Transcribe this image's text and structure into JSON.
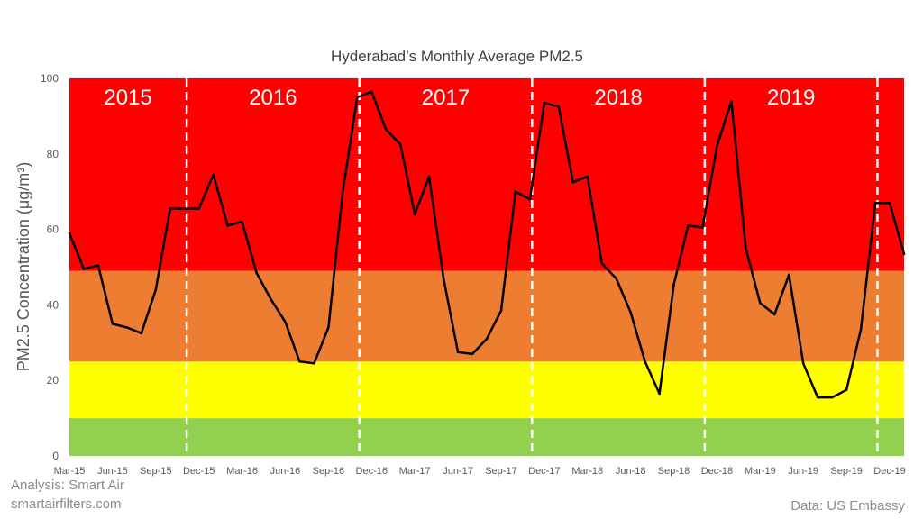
{
  "chart_data": {
    "type": "line",
    "title": "Hyderabad’s Monthly Average PM2.5",
    "ylabel": "PM2.5 Concentration (μg/m³)",
    "ylim": [
      0,
      100
    ],
    "y_ticks": [
      "0",
      "20",
      "40",
      "60",
      "80",
      "100"
    ],
    "x_tick_labels": [
      "Mar-15",
      "Jun-15",
      "Sep-15",
      "Dec-15",
      "Mar-16",
      "Jun-16",
      "Sep-16",
      "Dec-16",
      "Mar-17",
      "Jun-17",
      "Sep-17",
      "Dec-17",
      "Mar-18",
      "Jun-18",
      "Sep-18",
      "Dec-18",
      "Mar-19",
      "Jun-19",
      "Sep-19",
      "Dec-19"
    ],
    "bands": [
      {
        "from": 0,
        "to": 10,
        "color": "#92d050"
      },
      {
        "from": 10,
        "to": 25,
        "color": "#ffff00"
      },
      {
        "from": 25,
        "to": 49,
        "color": "#ed7d31"
      },
      {
        "from": 49,
        "to": 100,
        "color": "#ff0000"
      }
    ],
    "year_labels": [
      "2015",
      "2016",
      "2017",
      "2018",
      "2019"
    ],
    "year_dividers": [
      "Nov-15",
      "Nov-16",
      "Nov-17",
      "Nov-18",
      "Nov-19"
    ],
    "line_color": "#000000",
    "series": [
      {
        "x": [
          "Mar-15",
          "Apr-15",
          "May-15",
          "Jun-15",
          "Jul-15",
          "Aug-15",
          "Sep-15",
          "Oct-15",
          "Nov-15",
          "Dec-15",
          "Jan-16",
          "Feb-16",
          "Mar-16",
          "Apr-16",
          "May-16",
          "Jun-16",
          "Jul-16",
          "Aug-16",
          "Sep-16",
          "Oct-16",
          "Nov-16",
          "Dec-16",
          "Jan-17",
          "Feb-17",
          "Mar-17",
          "Apr-17",
          "May-17",
          "Jun-17",
          "Jul-17",
          "Aug-17",
          "Sep-17",
          "Oct-17",
          "Nov-17",
          "Dec-17",
          "Jan-18",
          "Feb-18",
          "Mar-18",
          "Apr-18",
          "May-18",
          "Jun-18",
          "Jul-18",
          "Aug-18",
          "Sep-18",
          "Oct-18",
          "Nov-18",
          "Dec-18",
          "Jan-19",
          "Feb-19",
          "Mar-19",
          "Apr-19",
          "May-19",
          "Jun-19",
          "Jul-19",
          "Aug-19",
          "Sep-19",
          "Oct-19",
          "Nov-19",
          "Dec-19",
          "Jan-20"
        ],
        "values": [
          59,
          49.5,
          50.5,
          35,
          34,
          32.5,
          44,
          65.5,
          65.5,
          65.5,
          74.5,
          61,
          62,
          48.5,
          41.5,
          35.5,
          25,
          24.5,
          34,
          70,
          95,
          96.5,
          86.5,
          82.5,
          64,
          74,
          47,
          27.5,
          27,
          31,
          38.5,
          70,
          68,
          93.5,
          92.5,
          72.5,
          74,
          51,
          47,
          38,
          25,
          16.5,
          45.5,
          61,
          60.5,
          82,
          94,
          55,
          40.5,
          37.5,
          48,
          24.5,
          15.5,
          15.5,
          17.5,
          33.5,
          67,
          67,
          53.5
        ]
      }
    ]
  },
  "credits": {
    "analysis": "Analysis: Smart Air",
    "website": "smartairfilters.com",
    "source": "Data: US Embassy"
  }
}
